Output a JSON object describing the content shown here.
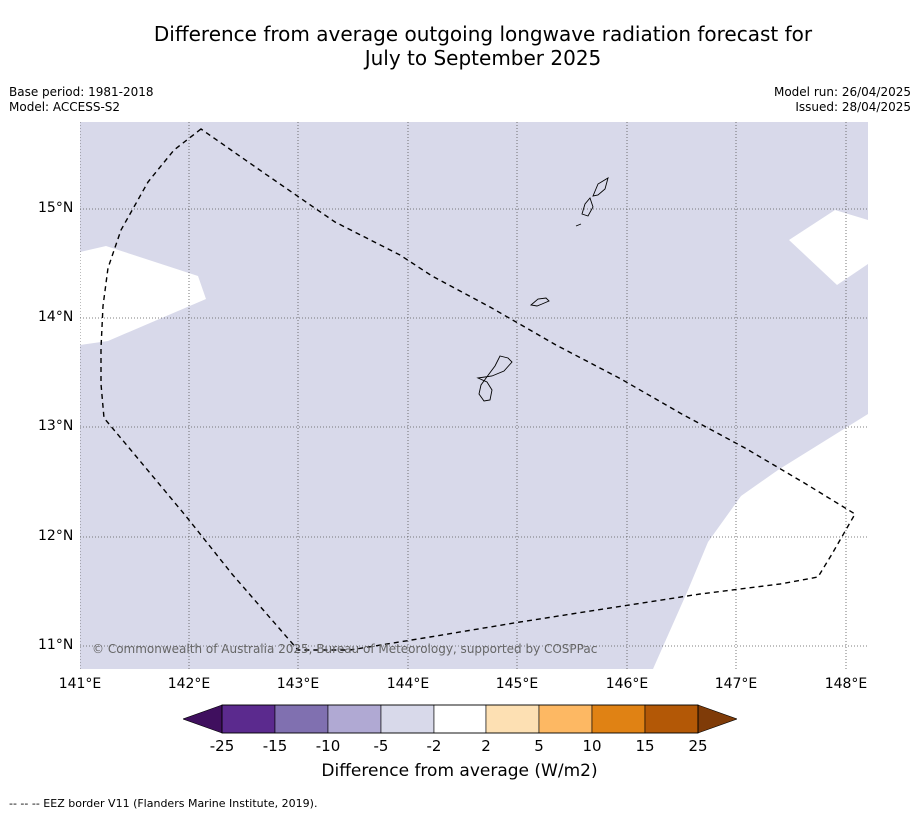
{
  "title": {
    "line1": "Difference from average outgoing longwave radiation forecast for",
    "line2": "July to September 2025"
  },
  "meta": {
    "base_period": "Base period: 1981-2018",
    "model": "Model: ACCESS-S2",
    "model_run": "Model run: 26/04/2025",
    "issued": "Issued: 28/04/2025"
  },
  "map": {
    "latitude_labels": [
      "15°N",
      "14°N",
      "13°N",
      "12°N",
      "11°N"
    ],
    "longitude_labels": [
      "141°E",
      "142°E",
      "143°E",
      "144°E",
      "145°E",
      "146°E",
      "147°E",
      "148°E"
    ],
    "copyright": "© Commonwealth of Australia 2025, Bureau of Meteorology, supported by COSPPac",
    "colors": {
      "dominant_fill": "#d8d9ea",
      "neutral_fill": "#ffffff",
      "eez_line": "#000000"
    }
  },
  "colorbar": {
    "ticks": [
      "-25",
      "-15",
      "-10",
      "-5",
      "-2",
      "2",
      "5",
      "10",
      "15",
      "25"
    ],
    "colors": [
      "#3f0f5e",
      "#5b2a8e",
      "#8070b0",
      "#b0a9d3",
      "#d8d9ea",
      "#ffffff",
      "#fde0b3",
      "#fdb863",
      "#e08214",
      "#b35806",
      "#7f3b08"
    ],
    "label": "Difference from average (W/m2)"
  },
  "footer": "--  --  -- EEZ border V11 (Flanders Marine Institute, 2019)."
}
